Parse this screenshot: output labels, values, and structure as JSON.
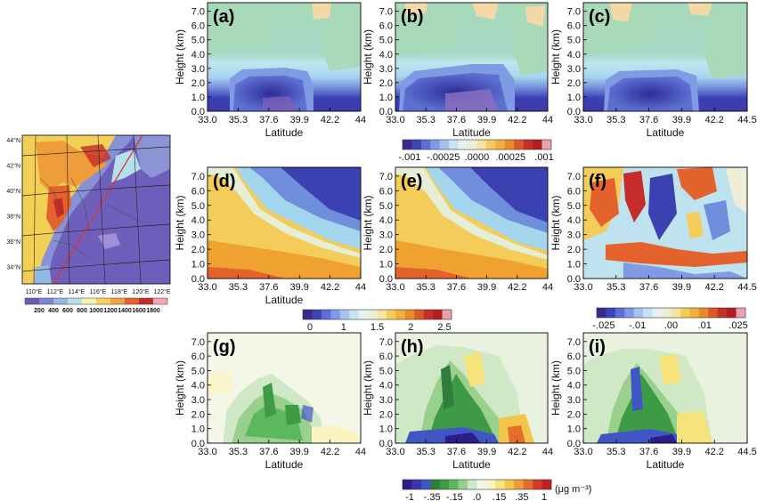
{
  "chart_data": {
    "type": "heatmap",
    "description_panels": [
      "(a)",
      "(b)",
      "(c)",
      "(d)",
      "(e)",
      "(f)",
      "(g)",
      "(h)",
      "(i)"
    ],
    "xlabel": "Latitude",
    "ylabel": "Height (km)",
    "y_ticks": [
      "0.0",
      "1.0",
      "2.0",
      "3.0",
      "4.0",
      "5.0",
      "6.0",
      "7.0"
    ],
    "x_ticks_a": [
      "33.0",
      "35.3",
      "37.6",
      "39.9",
      "42.2",
      "44"
    ],
    "x_ticks_b": [
      "33.0",
      "35.3",
      "37.6",
      "39.9",
      "42.2",
      "44.5"
    ],
    "colorbars": [
      {
        "labels": [
          "-.001",
          "-.00025",
          ".0000",
          ".00025",
          ".001"
        ],
        "colors": [
          "#3b2a8c",
          "#3e43b8",
          "#5c6fd4",
          "#7f9be4",
          "#a6c3ef",
          "#c9e3f4",
          "#e4f2f1",
          "#ecefd6",
          "#f6e3a3",
          "#f4cc5a",
          "#f0b13a",
          "#e98b2a",
          "#d85a2a",
          "#c63028",
          "#b01d22",
          "#e8a3a8"
        ],
        "unit": ""
      },
      {
        "labels": [
          "0",
          "1",
          "1.5",
          "2",
          "2.5"
        ],
        "colors": [
          "#3b2a8c",
          "#3e43b8",
          "#5c6fd4",
          "#7f9be4",
          "#a6c3ef",
          "#c9e3f4",
          "#e4f2f1",
          "#ecefd6",
          "#f6e3a3",
          "#f4cc5a",
          "#f0b13a",
          "#e98b2a",
          "#d85a2a",
          "#c63028",
          "#b01d22",
          "#e8a3a8"
        ],
        "unit": ""
      },
      {
        "labels": [
          "-.025",
          "-.01",
          ".00",
          ".01",
          ".025"
        ],
        "colors": [
          "#3b2a8c",
          "#3e43b8",
          "#5c6fd4",
          "#7f9be4",
          "#a6c3ef",
          "#c9e3f4",
          "#e4f2f1",
          "#ecefd6",
          "#f6e3a3",
          "#f4cc5a",
          "#f0b13a",
          "#e98b2a",
          "#d85a2a",
          "#c63028",
          "#b01d22",
          "#e8a3a8"
        ],
        "unit": ""
      },
      {
        "labels": [
          "-1",
          "-.35",
          "-.15",
          ".0",
          ".15",
          ".35",
          "1"
        ],
        "colors": [
          "#2a1f88",
          "#3a35b0",
          "#4156c6",
          "#2f7d3a",
          "#3d9a45",
          "#5cb85c",
          "#9ad08e",
          "#cfe8c6",
          "#f4f7e8",
          "#fbf3c2",
          "#f5e27a",
          "#f2c64a",
          "#ee9a36",
          "#e46d2c",
          "#d23d28",
          "#c2201f"
        ],
        "unit": "(μg m⁻³)"
      }
    ],
    "map": {
      "lon_ticks": [
        "110°E",
        "112°E",
        "114°E",
        "116°E",
        "118°E",
        "120°E",
        "122°E"
      ],
      "lat_ticks": [
        "44°N",
        "42°N",
        "40°N",
        "38°N",
        "36°N",
        "34°N"
      ],
      "terrain_legend": [
        "200",
        "400",
        "600",
        "800",
        "1000",
        "1200",
        "1400",
        "1600",
        "1800"
      ],
      "terrain_colors": [
        "#6a5bb8",
        "#7c84d8",
        "#93b8e6",
        "#b4e0ee",
        "#f3f3b0",
        "#f6d256",
        "#f2a33a",
        "#e8612c",
        "#c42d2a",
        "#f4a6b6"
      ]
    }
  }
}
